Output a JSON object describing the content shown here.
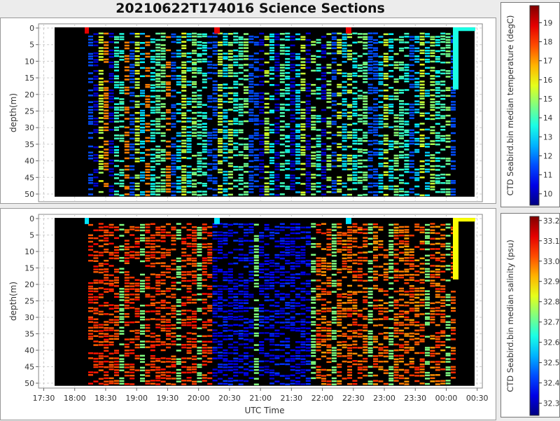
{
  "title": "20210622T174016 Science Sections",
  "x_ticks": [
    "17:30",
    "18:00",
    "18:30",
    "19:00",
    "19:30",
    "20:00",
    "20:30",
    "21:00",
    "21:30",
    "22:00",
    "22:30",
    "23:00",
    "23:30",
    "00:00",
    "00:30"
  ],
  "y_ticks": [
    "0",
    "5",
    "10",
    "15",
    "20",
    "25",
    "30",
    "35",
    "40",
    "45",
    "50"
  ],
  "xlabel": "UTC Time",
  "chart_data": [
    {
      "type": "heatmap",
      "ylabel": "depth(m)",
      "colorbar_label": "CTD Seabird.bin median temperature (degC)",
      "colorbar_ticks": [
        "10",
        "11",
        "12",
        "13",
        "14",
        "15",
        "16",
        "17",
        "18",
        "19"
      ],
      "colorbar_range": [
        9.4,
        19.9
      ],
      "ylim": [
        51,
        -1.5
      ],
      "xlim": [
        "17:25",
        "00:35"
      ],
      "colormap": "jet"
    },
    {
      "type": "heatmap",
      "ylabel": "depth(m)",
      "colorbar_label": "CTD Seabird.bin median salinity (psu)",
      "colorbar_ticks": [
        "32.3",
        "32.4",
        "32.5",
        "32.6",
        "32.7",
        "32.8",
        "32.9",
        "33.0",
        "33.1",
        "33.2"
      ],
      "colorbar_range": [
        32.24,
        33.22
      ],
      "ylim": [
        51,
        -1.5
      ],
      "xlim": [
        "17:25",
        "00:35"
      ],
      "colormap": "jet"
    }
  ]
}
